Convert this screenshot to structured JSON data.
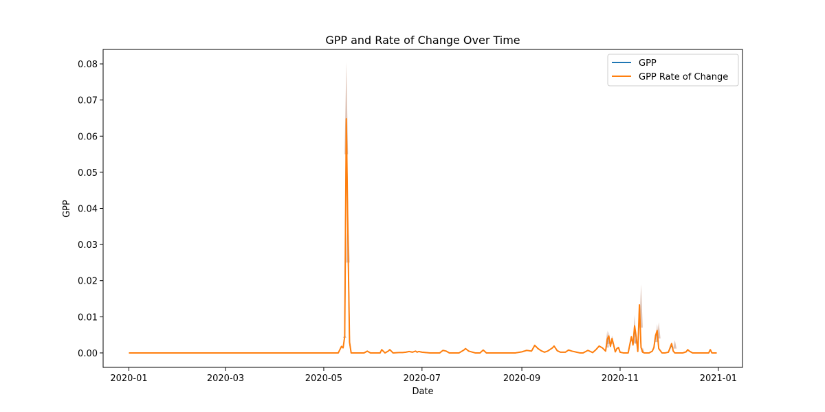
{
  "chart_data": {
    "type": "line",
    "title": "GPP and Rate of Change Over Time",
    "xlabel": "Date",
    "ylabel": "GPP",
    "xlim": [
      "2019-12-16",
      "2021-01-16"
    ],
    "ylim": [
      -0.004,
      0.084
    ],
    "x_ticks": [
      "2020-01",
      "2020-03",
      "2020-05",
      "2020-07",
      "2020-09",
      "2020-11",
      "2021-01"
    ],
    "y_ticks": [
      "0.00",
      "0.01",
      "0.02",
      "0.03",
      "0.04",
      "0.05",
      "0.06",
      "0.07",
      "0.08"
    ],
    "grid": false,
    "legend_position": "top-right",
    "series": [
      {
        "name": "GPP",
        "color": "#1f77b4",
        "x": [
          "2020-01-01",
          "2020-05-10",
          "2020-05-12",
          "2020-05-13",
          "2020-05-14",
          "2020-05-15",
          "2020-05-16",
          "2020-05-17",
          "2020-05-18",
          "2020-05-19",
          "2020-05-20",
          "2020-05-21",
          "2020-05-26",
          "2020-05-28",
          "2020-05-30",
          "2020-06-03",
          "2020-06-05",
          "2020-06-06",
          "2020-06-08",
          "2020-06-10",
          "2020-06-11",
          "2020-06-13",
          "2020-06-17",
          "2020-06-19",
          "2020-06-21",
          "2020-06-23",
          "2020-06-25",
          "2020-06-27",
          "2020-06-28",
          "2020-06-29",
          "2020-07-01",
          "2020-07-06",
          "2020-07-12",
          "2020-07-14",
          "2020-07-16",
          "2020-07-18",
          "2020-07-24",
          "2020-07-27",
          "2020-07-28",
          "2020-07-30",
          "2020-08-03",
          "2020-08-06",
          "2020-08-08",
          "2020-08-10",
          "2020-08-20",
          "2020-08-28",
          "2020-09-01",
          "2020-09-04",
          "2020-09-07",
          "2020-09-08",
          "2020-09-09",
          "2020-09-11",
          "2020-09-13",
          "2020-09-15",
          "2020-09-17",
          "2020-09-20",
          "2020-09-21",
          "2020-09-23",
          "2020-09-25",
          "2020-09-28",
          "2020-09-30",
          "2020-10-02",
          "2020-10-05",
          "2020-10-07",
          "2020-10-09",
          "2020-10-12",
          "2020-10-15",
          "2020-10-17",
          "2020-10-19",
          "2020-10-21",
          "2020-10-23",
          "2020-10-24",
          "2020-10-25",
          "2020-10-26",
          "2020-10-27",
          "2020-10-28",
          "2020-10-29",
          "2020-10-30",
          "2020-10-31",
          "2020-11-01",
          "2020-11-03",
          "2020-11-06",
          "2020-11-08",
          "2020-11-09",
          "2020-11-10",
          "2020-11-11",
          "2020-11-12",
          "2020-11-13",
          "2020-11-14",
          "2020-11-15",
          "2020-11-16",
          "2020-11-17",
          "2020-11-19",
          "2020-11-21",
          "2020-11-22",
          "2020-11-23",
          "2020-11-24",
          "2020-11-25",
          "2020-11-27",
          "2020-11-29",
          "2020-12-01",
          "2020-12-03",
          "2020-12-04",
          "2020-12-05",
          "2020-12-08",
          "2020-12-10",
          "2020-12-12",
          "2020-12-13",
          "2020-12-14",
          "2020-12-16",
          "2020-12-20",
          "2020-12-25",
          "2020-12-26",
          "2020-12-27",
          "2020-12-28",
          "2020-12-29",
          "2020-12-31"
        ],
        "values": [
          0,
          0,
          0.0018,
          0.0014,
          0.0045,
          0.064,
          0.032,
          0.003,
          0,
          0,
          0,
          0,
          0,
          0.0005,
          0,
          0,
          0,
          0.0009,
          0,
          0.0005,
          0.0009,
          0,
          0.0001,
          0.0001,
          0.0002,
          0.0004,
          0.0002,
          0.0005,
          0.0002,
          0.0004,
          0.0002,
          0,
          0,
          0.0007,
          0.0005,
          0,
          0,
          0.0008,
          0.0012,
          0.0005,
          0,
          0,
          0.0008,
          0,
          0,
          0,
          0.0003,
          0.0007,
          0.0005,
          0.0013,
          0.0021,
          0.0012,
          0.0006,
          0.0002,
          0.0005,
          0.0014,
          0.0019,
          0.0006,
          0.0002,
          0.0002,
          0.0008,
          0.0005,
          0.0002,
          0,
          0,
          0.0007,
          0.0001,
          0.0009,
          0.0019,
          0.0014,
          0.0005,
          0.0035,
          0.0045,
          0.0018,
          0.0038,
          0.0022,
          0.0003,
          0.0012,
          0.0015,
          0.0002,
          0,
          0,
          0.0042,
          0.0022,
          0.0065,
          0.0044,
          0.0004,
          0.013,
          0.0015,
          0.0002,
          0,
          0,
          0,
          0.0005,
          0.0015,
          0.0045,
          0.0058,
          0.0012,
          0,
          0,
          0.0002,
          0.0022,
          0.0005,
          0,
          0,
          0,
          0.0003,
          0.0008,
          0.0005,
          0,
          0,
          0,
          0,
          0.0008,
          0,
          0,
          0
        ]
      },
      {
        "name": "GPP Rate of Change",
        "color": "#ff7f0e",
        "x": [
          "2020-01-01",
          "2020-05-10",
          "2020-05-12",
          "2020-05-13",
          "2020-05-14",
          "2020-05-15",
          "2020-05-16",
          "2020-05-17",
          "2020-05-18",
          "2020-05-19",
          "2020-05-20",
          "2020-05-21",
          "2020-05-26",
          "2020-05-28",
          "2020-05-30",
          "2020-06-03",
          "2020-06-05",
          "2020-06-06",
          "2020-06-08",
          "2020-06-10",
          "2020-06-11",
          "2020-06-13",
          "2020-06-17",
          "2020-06-19",
          "2020-06-21",
          "2020-06-23",
          "2020-06-25",
          "2020-06-27",
          "2020-06-28",
          "2020-06-29",
          "2020-07-01",
          "2020-07-06",
          "2020-07-12",
          "2020-07-14",
          "2020-07-16",
          "2020-07-18",
          "2020-07-24",
          "2020-07-27",
          "2020-07-28",
          "2020-07-30",
          "2020-08-03",
          "2020-08-06",
          "2020-08-08",
          "2020-08-10",
          "2020-08-20",
          "2020-08-28",
          "2020-09-01",
          "2020-09-04",
          "2020-09-07",
          "2020-09-08",
          "2020-09-09",
          "2020-09-11",
          "2020-09-13",
          "2020-09-15",
          "2020-09-17",
          "2020-09-20",
          "2020-09-21",
          "2020-09-23",
          "2020-09-25",
          "2020-09-28",
          "2020-09-30",
          "2020-10-02",
          "2020-10-05",
          "2020-10-07",
          "2020-10-09",
          "2020-10-12",
          "2020-10-15",
          "2020-10-17",
          "2020-10-19",
          "2020-10-21",
          "2020-10-23",
          "2020-10-24",
          "2020-10-25",
          "2020-10-26",
          "2020-10-27",
          "2020-10-28",
          "2020-10-29",
          "2020-10-30",
          "2020-10-31",
          "2020-11-01",
          "2020-11-03",
          "2020-11-06",
          "2020-11-08",
          "2020-11-09",
          "2020-11-10",
          "2020-11-11",
          "2020-11-12",
          "2020-11-13",
          "2020-11-14",
          "2020-11-15",
          "2020-11-16",
          "2020-11-17",
          "2020-11-19",
          "2020-11-21",
          "2020-11-22",
          "2020-11-23",
          "2020-11-24",
          "2020-11-25",
          "2020-11-27",
          "2020-11-29",
          "2020-12-01",
          "2020-12-03",
          "2020-12-04",
          "2020-12-05",
          "2020-12-08",
          "2020-12-10",
          "2020-12-12",
          "2020-12-13",
          "2020-12-14",
          "2020-12-16",
          "2020-12-20",
          "2020-12-25",
          "2020-12-26",
          "2020-12-27",
          "2020-12-28",
          "2020-12-29",
          "2020-12-31"
        ],
        "values": [
          0,
          0,
          0.0018,
          0.0014,
          0.0045,
          0.0648,
          0.0325,
          0.003,
          0,
          0,
          0,
          0,
          0,
          0.0005,
          0,
          0,
          0,
          0.0009,
          0,
          0.0005,
          0.0009,
          0,
          0.0001,
          0.0001,
          0.0002,
          0.0004,
          0.0002,
          0.0005,
          0.0002,
          0.0004,
          0.0002,
          0,
          0,
          0.0007,
          0.0005,
          0,
          0,
          0.0008,
          0.0012,
          0.0005,
          0,
          0,
          0.0008,
          0,
          0,
          0,
          0.0003,
          0.0007,
          0.0005,
          0.0013,
          0.0021,
          0.0012,
          0.0006,
          0.0002,
          0.0005,
          0.0014,
          0.0019,
          0.0006,
          0.0002,
          0.0002,
          0.0008,
          0.0005,
          0.0002,
          0,
          0,
          0.0007,
          0.0001,
          0.0009,
          0.0019,
          0.0014,
          0.0005,
          0.0038,
          0.0047,
          0.0018,
          0.004,
          0.0022,
          0.0003,
          0.0012,
          0.0015,
          0.0002,
          0,
          0,
          0.0045,
          0.0022,
          0.0075,
          0.0044,
          0.0004,
          0.0133,
          0.0015,
          0.0002,
          0,
          0,
          0,
          0.0005,
          0.0015,
          0.0048,
          0.0062,
          0.0012,
          0,
          0,
          0.0002,
          0.0026,
          0.0005,
          0,
          0,
          0,
          0.0003,
          0.0009,
          0.0005,
          0,
          0,
          0,
          0,
          0.0009,
          0,
          0,
          0
        ]
      }
    ],
    "band": {
      "color": "#ff7f0e",
      "x": [
        "2020-05-14",
        "2020-05-15",
        "2020-05-16",
        "2020-10-24",
        "2020-10-25",
        "2020-10-27",
        "2020-11-10",
        "2020-11-11",
        "2020-11-14",
        "2020-11-15",
        "2020-11-24",
        "2020-11-25",
        "2020-12-05"
      ],
      "upper": [
        0.005,
        0.0805,
        0.041,
        0.0062,
        0.006,
        0.0048,
        0.0105,
        0.0044,
        0.019,
        0.0015,
        0.008,
        0.0085,
        0.0035
      ],
      "lower": [
        0.0042,
        0.055,
        0.025,
        0.0015,
        0.0025,
        0.0025,
        0.0028,
        0.0025,
        0.007,
        0.0003,
        0.003,
        0.004,
        0.0012
      ]
    }
  }
}
